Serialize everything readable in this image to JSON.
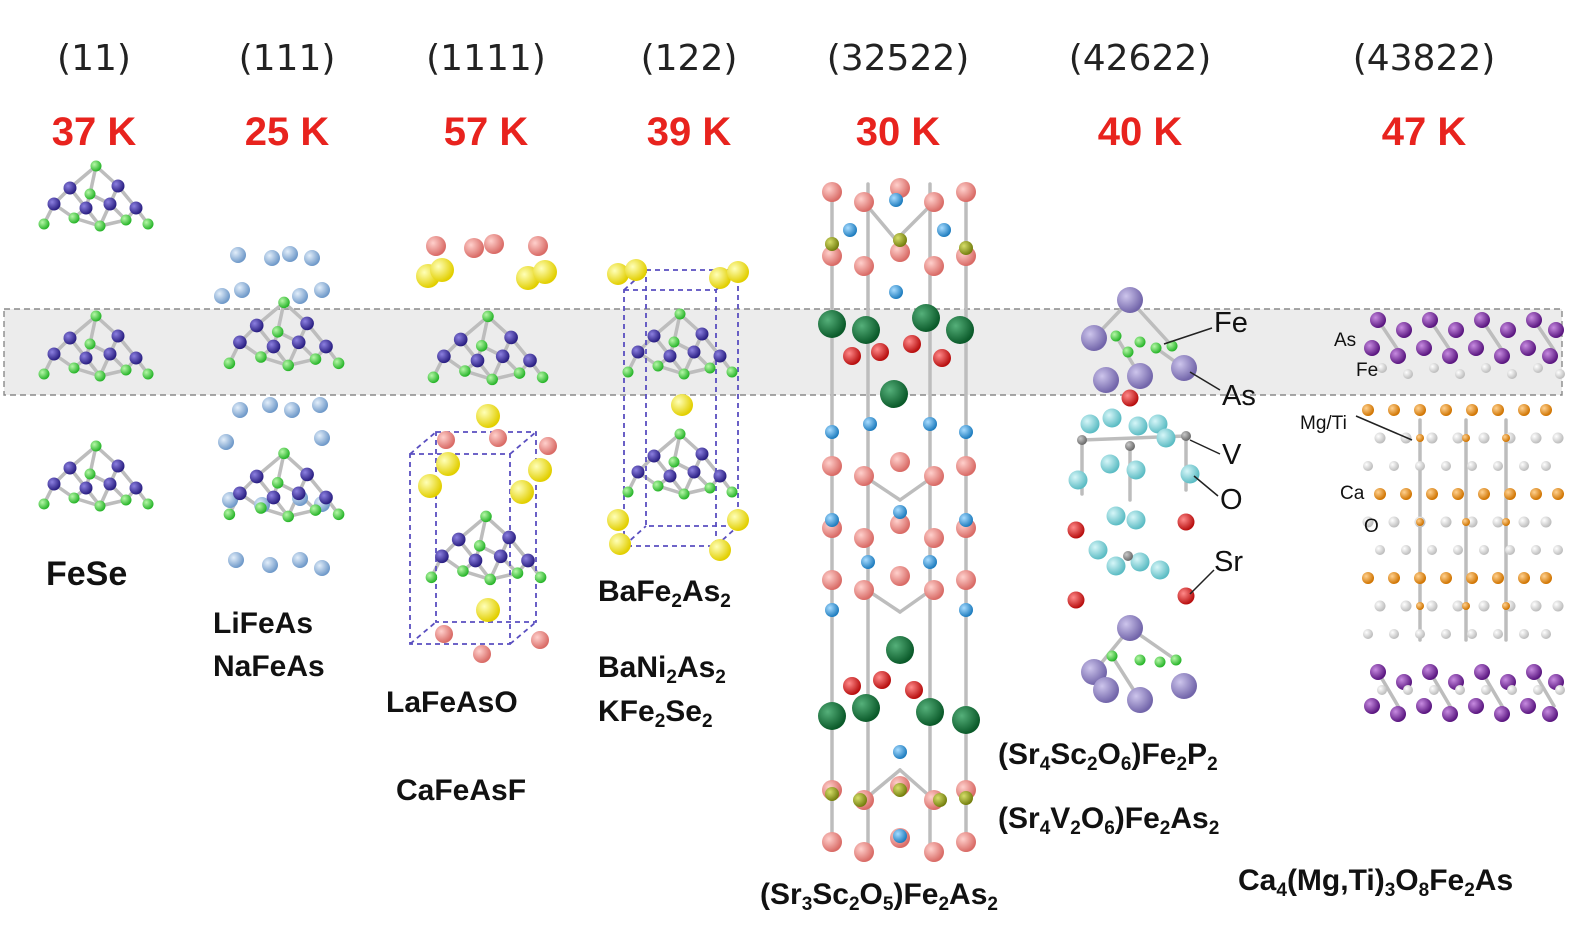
{
  "families": [
    {
      "label": "(11)",
      "tc": "37 K"
    },
    {
      "label": "(111)",
      "tc": "25 K"
    },
    {
      "label": "(1111)",
      "tc": "57 K"
    },
    {
      "label": "(122)",
      "tc": "39 K"
    },
    {
      "label": "(32522)",
      "tc": "30 K"
    },
    {
      "label": "(42622)",
      "tc": "40 K"
    },
    {
      "label": "(43822)",
      "tc": "47 K"
    }
  ],
  "compounds": {
    "fese": "FeSe",
    "lifeas": "LiFeAs",
    "nafeas": "NaFeAs",
    "lafeaso": "LaFeAsO",
    "cafeasf": "CaFeAsF",
    "bafe2as2": [
      "BaFe",
      "2",
      "As",
      "2"
    ],
    "bani2as2": [
      "BaNi",
      "2",
      "As",
      "2"
    ],
    "kfe2se2": [
      "KFe",
      "2",
      "Se",
      "2"
    ],
    "sr3sc2o5": [
      "(Sr",
      "3",
      "Sc",
      "2",
      "O",
      "5",
      ")Fe",
      "2",
      "As",
      "2"
    ],
    "sr4sc2o6": [
      "(Sr",
      "4",
      "Sc",
      "2",
      "O",
      "6",
      ")Fe",
      "2",
      "P",
      "2"
    ],
    "sr4v2o6": [
      "(Sr",
      "4",
      "V",
      "2",
      "O",
      "6",
      ")Fe",
      "2",
      "As",
      "2"
    ],
    "ca4mgti": [
      "Ca",
      "4",
      "(Mg,Ti)",
      "3",
      "O",
      "8",
      "Fe",
      "2",
      "As"
    ]
  },
  "atom_labels_42622": [
    "Fe",
    "As",
    "V",
    "O",
    "Sr"
  ],
  "atom_labels_43822": [
    "As",
    "Fe",
    "Mg/Ti",
    "Ca",
    "O"
  ],
  "colors": {
    "tc_red": "#e8231e",
    "band_fill": "#ececec",
    "fe_green": "#3ccc3c",
    "as_navy": "#3c2f9a",
    "li_blue": "#93b7dc",
    "la_pink": "#ee8b86",
    "o_yellow": "#f2e21a",
    "sc_blue": "#2e8fd0",
    "o_red": "#d11b1b",
    "sr_darkgreen": "#126e36",
    "olive": "#8f9a1f",
    "as_lavender": "#8d80bd",
    "v_cyan": "#7fd2d8",
    "purple": "#7a2c9e",
    "ca_orange": "#e98a12"
  }
}
